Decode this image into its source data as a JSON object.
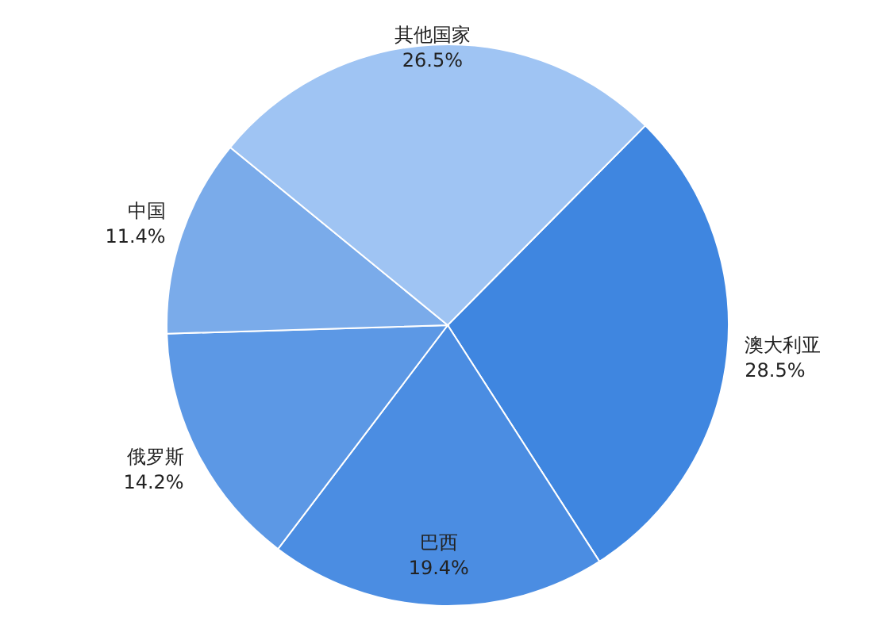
{
  "chart_data": {
    "type": "pie",
    "categories": [
      "澳大利亚",
      "巴西",
      "俄罗斯",
      "中国",
      "其他国家"
    ],
    "values": [
      28.5,
      19.4,
      14.2,
      11.4,
      26.5
    ],
    "colors": [
      "#3f86e0",
      "#4b8de2",
      "#5c98e5",
      "#7aabea",
      "#9fc4f3"
    ],
    "value_labels": [
      "28.5%",
      "19.4%",
      "14.2%",
      "11.4%",
      "26.5%"
    ]
  }
}
